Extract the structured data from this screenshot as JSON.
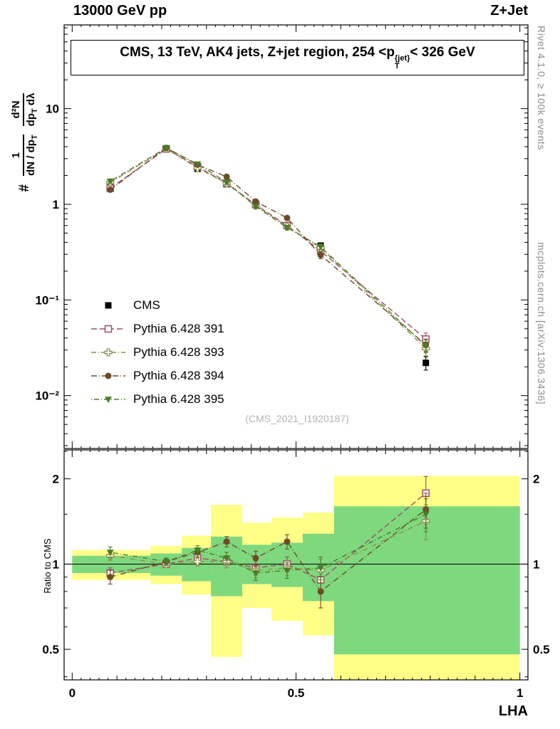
{
  "header": {
    "left": "13000 GeV pp",
    "right": "Z+Jet"
  },
  "title": {
    "part1": "CMS, 13 TeV, AK4 jets, Z+jet region, 254 <p",
    "sub": "T",
    "sup": "{jet}",
    "part2": "< 326 GeV"
  },
  "watermark": "(CMS_2021_I1920187)",
  "side_labels": {
    "rivet": "Rivet 4.1.0, ≥ 100k events",
    "mcplots": "mcplots.cern.ch [arXiv:1306.3436]"
  },
  "axis_labels": {
    "x": "LHA",
    "ratio_y": "Ratio to CMS",
    "main_y": {
      "prefix": "#",
      "frac1_num": "1",
      "frac1_den_main": "dN / dp",
      "frac1_den_sub": "T",
      "frac2_num": "d²N",
      "frac2_den_main": "dp",
      "frac2_den_sub": "T",
      "frac2_den_tail": " dλ"
    }
  },
  "chart_data": [
    {
      "type": "line",
      "panel": "main",
      "title": "CMS, 13 TeV, AK4 jets, Z+jet region, 254 <pT{jet}< 326 GeV",
      "xlabel": "LHA",
      "ylabel": "# 1/(dN/dpT) d²N/(dpT dλ)",
      "yscale": "log",
      "xlim": [
        -0.018,
        1.018
      ],
      "ylim": [
        0.0028,
        75
      ],
      "x": [
        0.085,
        0.21,
        0.28,
        0.345,
        0.41,
        0.48,
        0.555,
        0.79
      ],
      "xticks": [
        {
          "v": 0,
          "label": "0"
        },
        {
          "v": 0.5,
          "label": "0.5"
        },
        {
          "v": 1,
          "label": "1"
        }
      ],
      "yticks": [
        {
          "v": 10,
          "label": "10"
        },
        {
          "v": 1,
          "label": "1"
        },
        {
          "v": 0.1,
          "label": "10⁻¹"
        },
        {
          "v": 0.01,
          "label": "10⁻²"
        }
      ],
      "series": [
        {
          "id": "cms",
          "name": "CMS",
          "marker": "square-filled",
          "color": "#000000",
          "dash": null,
          "values": [
            1.58,
            3.8,
            2.35,
            1.62,
            1.02,
            0.6,
            0.37,
            0.022
          ],
          "yerr": [
            0.07,
            0.1,
            0.08,
            0.06,
            0.04,
            0.025,
            0.02,
            0.0035
          ]
        },
        {
          "id": "py391",
          "name": "Pythia 6.428 391",
          "marker": "square-open",
          "color": "#9c4e66",
          "dash": "8,4",
          "values": [
            1.47,
            3.8,
            2.47,
            1.66,
            0.99,
            0.6,
            0.325,
            0.039
          ],
          "yerr": [
            0.06,
            0.08,
            0.07,
            0.06,
            0.04,
            0.03,
            0.025,
            0.006
          ]
        },
        {
          "id": "py393",
          "name": "Pythia 6.428 393",
          "marker": "cross-open",
          "color": "#8f8f4b",
          "dash": "7,3,1,3",
          "values": [
            1.69,
            3.8,
            2.4,
            1.65,
            0.97,
            0.585,
            0.35,
            0.031
          ],
          "yerr": [
            0.06,
            0.08,
            0.07,
            0.06,
            0.04,
            0.03,
            0.025,
            0.005
          ]
        },
        {
          "id": "py394",
          "name": "Pythia 6.428 394",
          "marker": "circle-filled",
          "color": "#6f4a28",
          "dash": "8,3,1,3",
          "values": [
            1.42,
            3.88,
            2.59,
            1.94,
            1.07,
            0.72,
            0.295,
            0.034
          ],
          "yerr": [
            0.06,
            0.08,
            0.07,
            0.06,
            0.04,
            0.03,
            0.025,
            0.005
          ]
        },
        {
          "id": "py395",
          "name": "Pythia 6.428 395",
          "marker": "triangle-down-filled",
          "color": "#4a7c26",
          "dash": "1,3,7,3",
          "values": [
            1.74,
            3.88,
            2.63,
            1.7,
            0.95,
            0.57,
            0.36,
            0.033
          ],
          "yerr": [
            0.06,
            0.08,
            0.07,
            0.06,
            0.04,
            0.03,
            0.025,
            0.005
          ]
        }
      ]
    },
    {
      "type": "line",
      "panel": "ratio",
      "ylabel": "Ratio to CMS",
      "yscale": "log",
      "ylim": [
        0.39,
        2.53
      ],
      "reference_line": 1,
      "x": [
        0.085,
        0.21,
        0.28,
        0.345,
        0.41,
        0.48,
        0.555,
        0.79
      ],
      "yticks": [
        {
          "v": 2,
          "label": "2"
        },
        {
          "v": 1,
          "label": "1"
        },
        {
          "v": 0.5,
          "label": "0.5"
        }
      ],
      "minor_ticks": [
        0.4,
        0.6,
        0.7,
        0.8,
        0.9,
        1.5,
        2.5
      ],
      "band_colors": {
        "yellow": "#ffff87",
        "green": "#7ed87e"
      },
      "bands": [
        {
          "xlo": 0.0,
          "xhi": 0.175,
          "yellow": [
            0.88,
            1.12
          ],
          "green": [
            0.93,
            1.07
          ]
        },
        {
          "xlo": 0.175,
          "xhi": 0.245,
          "yellow": [
            0.85,
            1.16
          ],
          "green": [
            0.91,
            1.09
          ]
        },
        {
          "xlo": 0.245,
          "xhi": 0.31,
          "yellow": [
            0.78,
            1.26
          ],
          "green": [
            0.87,
            1.14
          ]
        },
        {
          "xlo": 0.31,
          "xhi": 0.38,
          "yellow": [
            0.47,
            1.62
          ],
          "green": [
            0.77,
            1.25
          ]
        },
        {
          "xlo": 0.38,
          "xhi": 0.445,
          "yellow": [
            0.7,
            1.4
          ],
          "green": [
            0.85,
            1.17
          ]
        },
        {
          "xlo": 0.445,
          "xhi": 0.515,
          "yellow": [
            0.63,
            1.46
          ],
          "green": [
            0.83,
            1.19
          ]
        },
        {
          "xlo": 0.515,
          "xhi": 0.585,
          "yellow": [
            0.56,
            1.52
          ],
          "green": [
            0.74,
            1.28
          ]
        },
        {
          "xlo": 0.585,
          "xhi": 1.0,
          "yellow": [
            0.35,
            2.05
          ],
          "green": [
            0.48,
            1.6
          ]
        }
      ],
      "series": [
        {
          "id": "py391",
          "name": "Pythia 6.428 391",
          "marker": "square-open",
          "color": "#9c4e66",
          "dash": "8,4",
          "values": [
            0.93,
            1.0,
            1.05,
            1.02,
            0.97,
            1.0,
            0.88,
            1.78
          ],
          "yerr": [
            0.04,
            0.025,
            0.035,
            0.05,
            0.055,
            0.06,
            0.09,
            0.26
          ]
        },
        {
          "id": "py393",
          "name": "Pythia 6.428 393",
          "marker": "cross-open",
          "color": "#8f8f4b",
          "dash": "7,3,1,3",
          "values": [
            1.07,
            1.0,
            1.02,
            1.02,
            0.95,
            0.97,
            0.95,
            1.42
          ],
          "yerr": [
            0.04,
            0.025,
            0.035,
            0.05,
            0.055,
            0.06,
            0.09,
            0.2
          ]
        },
        {
          "id": "py394",
          "name": "Pythia 6.428 394",
          "marker": "circle-filled",
          "color": "#6f4a28",
          "dash": "8,3,1,3",
          "values": [
            0.9,
            1.02,
            1.1,
            1.2,
            1.05,
            1.2,
            0.8,
            1.56
          ],
          "yerr": [
            0.05,
            0.03,
            0.04,
            0.05,
            0.06,
            0.07,
            0.1,
            0.22
          ]
        },
        {
          "id": "py395",
          "name": "Pythia 6.428 395",
          "marker": "triangle-down-filled",
          "color": "#4a7c26",
          "dash": "1,3,7,3",
          "values": [
            1.1,
            1.02,
            1.12,
            1.05,
            0.93,
            0.95,
            0.97,
            1.5
          ],
          "yerr": [
            0.05,
            0.03,
            0.04,
            0.05,
            0.055,
            0.06,
            0.09,
            0.2
          ]
        }
      ]
    }
  ]
}
